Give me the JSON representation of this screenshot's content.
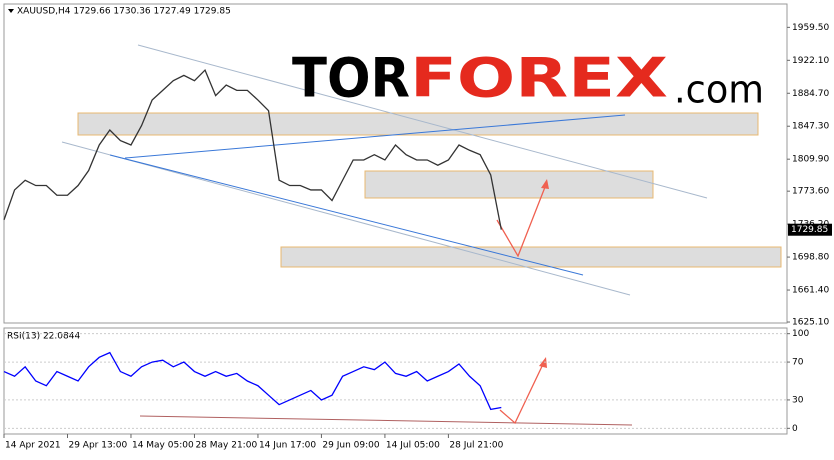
{
  "chart_data": [
    {
      "type": "line",
      "title": "XAUUSD,H4  1729.66 1730.36 1727.49 1729.85",
      "watermark": [
        "TOR",
        "FOREX",
        ".com"
      ],
      "color": "#333333",
      "values": [
        1741,
        1775,
        1786,
        1780,
        1780,
        1769,
        1769,
        1780,
        1797,
        1826,
        1843,
        1831,
        1826,
        1848,
        1877,
        1888,
        1899,
        1905,
        1899,
        1911,
        1882,
        1894,
        1888,
        1888,
        1877,
        1865,
        1786,
        1780,
        1780,
        1775,
        1775,
        1763,
        1786,
        1809,
        1809,
        1815,
        1809,
        1826,
        1815,
        1809,
        1809,
        1803,
        1809,
        1826,
        1820,
        1815,
        1792,
        1730
      ],
      "last_price": 1729.85,
      "xlim": [
        0,
        74
      ],
      "xticks": [
        {
          "value": 0,
          "label": "14 Apr 2021"
        },
        {
          "value": 6,
          "label": "29 Apr 13:00"
        },
        {
          "value": 12,
          "label": "14 May 05:00"
        },
        {
          "value": 18,
          "label": "28 May 21:00"
        },
        {
          "value": 24,
          "label": "14 Jun 17:00"
        },
        {
          "value": 30,
          "label": "29 Jun 09:00"
        },
        {
          "value": 36,
          "label": "14 Jul 05:00"
        },
        {
          "value": 42,
          "label": "28 Jul 21:00"
        }
      ],
      "ylim": [
        1624,
        1986
      ],
      "yticks": [
        {
          "value": 1959.5,
          "label": "1959.50"
        },
        {
          "value": 1922.1,
          "label": "1922.10"
        },
        {
          "value": 1884.7,
          "label": "1884.70"
        },
        {
          "value": 1847.3,
          "label": "1847.30"
        },
        {
          "value": 1809.9,
          "label": "1809.90"
        },
        {
          "value": 1773.6,
          "label": "1773.60"
        },
        {
          "value": 1736.2,
          "label": "1736.20"
        },
        {
          "value": 1698.8,
          "label": "1698.80"
        },
        {
          "value": 1661.4,
          "label": "1661.40"
        },
        {
          "value": 1625.1,
          "label": "1625.10"
        }
      ]
    },
    {
      "type": "line",
      "title": "RSI(13) 22.0844",
      "color": "#0000ff",
      "values": [
        60,
        55,
        65,
        50,
        45,
        60,
        55,
        50,
        65,
        75,
        80,
        60,
        55,
        65,
        70,
        72,
        65,
        70,
        60,
        55,
        60,
        55,
        58,
        50,
        45,
        35,
        25,
        30,
        35,
        40,
        30,
        35,
        55,
        60,
        65,
        62,
        70,
        58,
        55,
        60,
        50,
        55,
        60,
        68,
        55,
        45,
        20,
        22
      ],
      "ylim": [
        -6,
        106
      ],
      "yticks": [
        0,
        30,
        70,
        100
      ]
    }
  ]
}
